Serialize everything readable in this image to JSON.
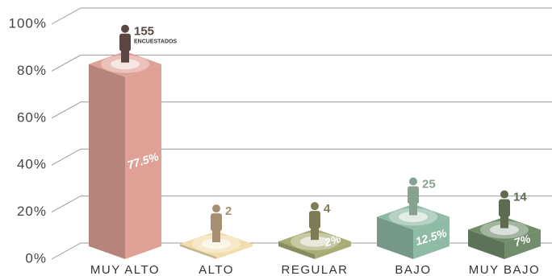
{
  "chart_data": {
    "type": "bar3d",
    "categories": [
      "MUY ALTO",
      "ALTO",
      "REGULAR",
      "BAJO",
      "MUY BAJO"
    ],
    "values": [
      77.5,
      1,
      2,
      12.5,
      7
    ],
    "value_labels": [
      "77.5%",
      null,
      "2%",
      "12.5%",
      "7%"
    ],
    "counts": [
      155,
      2,
      4,
      25,
      14
    ],
    "count_unit": "ENCUESTADOS",
    "colors": [
      "#dfa196",
      "#f2dcab",
      "#a7ac74",
      "#8fbaa6",
      "#728d6c"
    ],
    "icon_colors": [
      "#5b4643",
      "#a88f72",
      "#7d7c55",
      "#88a291",
      "#5f6a51"
    ],
    "ylim": [
      0,
      100
    ],
    "yticks": [
      {
        "value": 0,
        "label": "0%"
      },
      {
        "value": 20,
        "label": "20%"
      },
      {
        "value": 40,
        "label": "40%"
      },
      {
        "value": 60,
        "label": "60%"
      },
      {
        "value": 80,
        "label": "80%"
      },
      {
        "value": 100,
        "label": "100%"
      }
    ],
    "grid": true
  }
}
